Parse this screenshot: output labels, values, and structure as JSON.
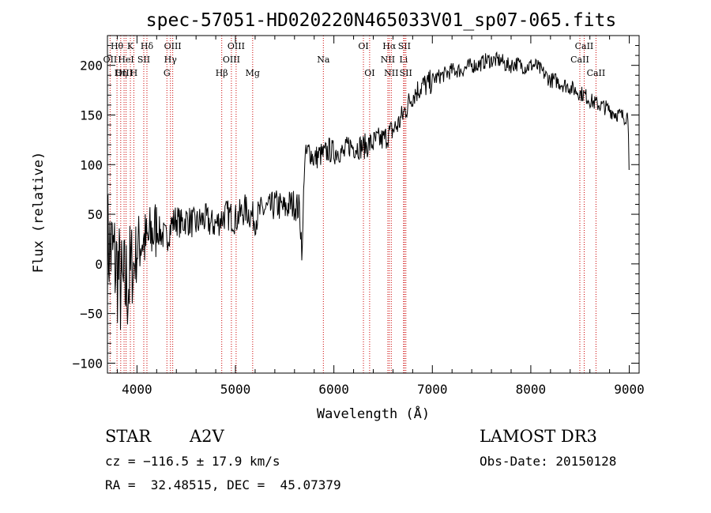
{
  "chart_data": {
    "type": "line",
    "title": "spec-57051-HD020220N465033V01_sp07-065.fits",
    "xlabel": "Wavelength (Å)",
    "ylabel": "Flux (relative)",
    "xlim": [
      3700,
      9100
    ],
    "ylim": [
      -110,
      230
    ],
    "xticks": [
      4000,
      5000,
      6000,
      7000,
      8000,
      9000
    ],
    "yticks": [
      -100,
      -50,
      0,
      50,
      100,
      150,
      200
    ],
    "grid": false,
    "line_color": "#000000",
    "marker_color": "#cc0000",
    "series": [
      {
        "name": "flux",
        "x": [
          3700,
          3750,
          3800,
          3850,
          3900,
          3950,
          4000,
          4050,
          4100,
          4150,
          4200,
          4250,
          4300,
          4350,
          4400,
          4450,
          4500,
          4550,
          4600,
          4650,
          4700,
          4750,
          4800,
          4850,
          4900,
          4950,
          5000,
          5050,
          5100,
          5150,
          5200,
          5250,
          5300,
          5350,
          5400,
          5450,
          5500,
          5550,
          5600,
          5650,
          5680,
          5700,
          5750,
          5800,
          5850,
          5900,
          5950,
          6000,
          6050,
          6100,
          6150,
          6200,
          6250,
          6300,
          6350,
          6400,
          6450,
          6500,
          6550,
          6600,
          6650,
          6700,
          6750,
          6800,
          6850,
          6900,
          6950,
          7000,
          7050,
          7100,
          7150,
          7200,
          7250,
          7300,
          7350,
          7400,
          7450,
          7500,
          7550,
          7600,
          7650,
          7700,
          7750,
          7800,
          7850,
          7900,
          7950,
          8000,
          8050,
          8100,
          8150,
          8200,
          8250,
          8300,
          8350,
          8400,
          8450,
          8500,
          8550,
          8600,
          8650,
          8700,
          8750,
          8800,
          8850,
          8900,
          8950,
          8990,
          9000
        ],
        "y": [
          20,
          10,
          -5,
          -30,
          -20,
          -10,
          15,
          25,
          20,
          30,
          35,
          30,
          25,
          40,
          45,
          40,
          45,
          42,
          40,
          44,
          45,
          40,
          40,
          45,
          50,
          48,
          45,
          50,
          55,
          50,
          45,
          52,
          55,
          55,
          60,
          58,
          55,
          60,
          60,
          55,
          10,
          105,
          115,
          105,
          110,
          110,
          115,
          112,
          115,
          110,
          120,
          118,
          118,
          118,
          120,
          122,
          125,
          125,
          130,
          135,
          140,
          150,
          160,
          170,
          175,
          180,
          180,
          185,
          188,
          190,
          192,
          195,
          195,
          195,
          198,
          200,
          200,
          202,
          205,
          205,
          205,
          205,
          200,
          200,
          202,
          200,
          198,
          200,
          200,
          195,
          190,
          185,
          185,
          182,
          180,
          178,
          175,
          172,
          170,
          165,
          162,
          160,
          158,
          155,
          152,
          150,
          148,
          150,
          90
        ]
      }
    ],
    "line_markers": [
      {
        "label": "Hθ",
        "wavelength": 3797,
        "row": 1
      },
      {
        "label": "OII",
        "wavelength": 3727,
        "row": 2
      },
      {
        "label": "OIII",
        "wavelength": 3869,
        "row": 3
      },
      {
        "label": "Hη",
        "wavelength": 3835,
        "row": 3
      },
      {
        "label": "K",
        "wavelength": 3933,
        "row": 1
      },
      {
        "label": "HeI",
        "wavelength": 3889,
        "row": 2
      },
      {
        "label": "H",
        "wavelength": 3968,
        "row": 3
      },
      {
        "label": "SII",
        "wavelength": 4069,
        "row": 2
      },
      {
        "label": "Hδ",
        "wavelength": 4101,
        "row": 1
      },
      {
        "label": "OIII",
        "wavelength": 4363,
        "row": 1
      },
      {
        "label": "Hγ",
        "wavelength": 4340,
        "row": 2
      },
      {
        "label": "G",
        "wavelength": 4304,
        "row": 3
      },
      {
        "label": "Hβ",
        "wavelength": 4861,
        "row": 3
      },
      {
        "label": "OIII",
        "wavelength": 4959,
        "row": 2
      },
      {
        "label": "OIII",
        "wavelength": 5007,
        "row": 1
      },
      {
        "label": "Mg",
        "wavelength": 5175,
        "row": 3
      },
      {
        "label": "Na",
        "wavelength": 5893,
        "row": 2
      },
      {
        "label": "OI",
        "wavelength": 6300,
        "row": 1
      },
      {
        "label": "OI",
        "wavelength": 6363,
        "row": 3
      },
      {
        "label": "Hα",
        "wavelength": 6563,
        "row": 1
      },
      {
        "label": "NII",
        "wavelength": 6548,
        "row": 2
      },
      {
        "label": "NII",
        "wavelength": 6583,
        "row": 3
      },
      {
        "label": "SII",
        "wavelength": 6716,
        "row": 1
      },
      {
        "label": "Li",
        "wavelength": 6708,
        "row": 2
      },
      {
        "label": "SII",
        "wavelength": 6731,
        "row": 3
      },
      {
        "label": "CaII",
        "wavelength": 8542,
        "row": 1
      },
      {
        "label": "CaII",
        "wavelength": 8498,
        "row": 2
      },
      {
        "label": "CaII",
        "wavelength": 8662,
        "row": 3
      }
    ]
  },
  "info": {
    "object_class": "STAR",
    "subclass": "A2V",
    "survey": "LAMOST DR3",
    "cz": "cz = −116.5 ± 17.9 km/s",
    "obs_date": "Obs-Date: 20150128",
    "coords": "RA =  32.48515, DEC =  45.07379"
  }
}
